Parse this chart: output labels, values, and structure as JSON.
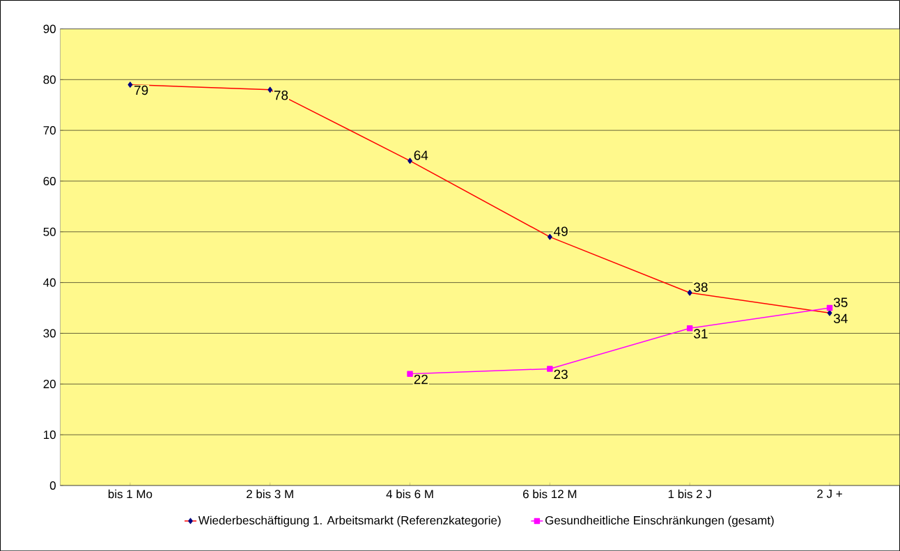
{
  "chart_data": {
    "type": "line",
    "categories": [
      "bis 1 Mo",
      "2 bis 3 M",
      "4 bis 6 M",
      "6 bis 12 M",
      "1 bis 2 J",
      "2 J +"
    ],
    "series": [
      {
        "name": "Wiederbeschäftigung 1. Arbeitsmarkt (Referenzkategorie)",
        "color": "#ff0000",
        "marker": "diamond",
        "values": [
          79,
          78,
          64,
          49,
          38,
          34
        ]
      },
      {
        "name": "Gesundheitliche Einschränkungen (gesamt)",
        "color": "#ff00ff",
        "marker": "square",
        "values": [
          null,
          null,
          22,
          23,
          31,
          35
        ]
      }
    ],
    "ylim": [
      0,
      90
    ],
    "yticks": [
      0,
      10,
      20,
      30,
      40,
      50,
      60,
      70,
      80,
      90
    ],
    "grid": "y",
    "legend": "bottom",
    "data_labels": true
  }
}
